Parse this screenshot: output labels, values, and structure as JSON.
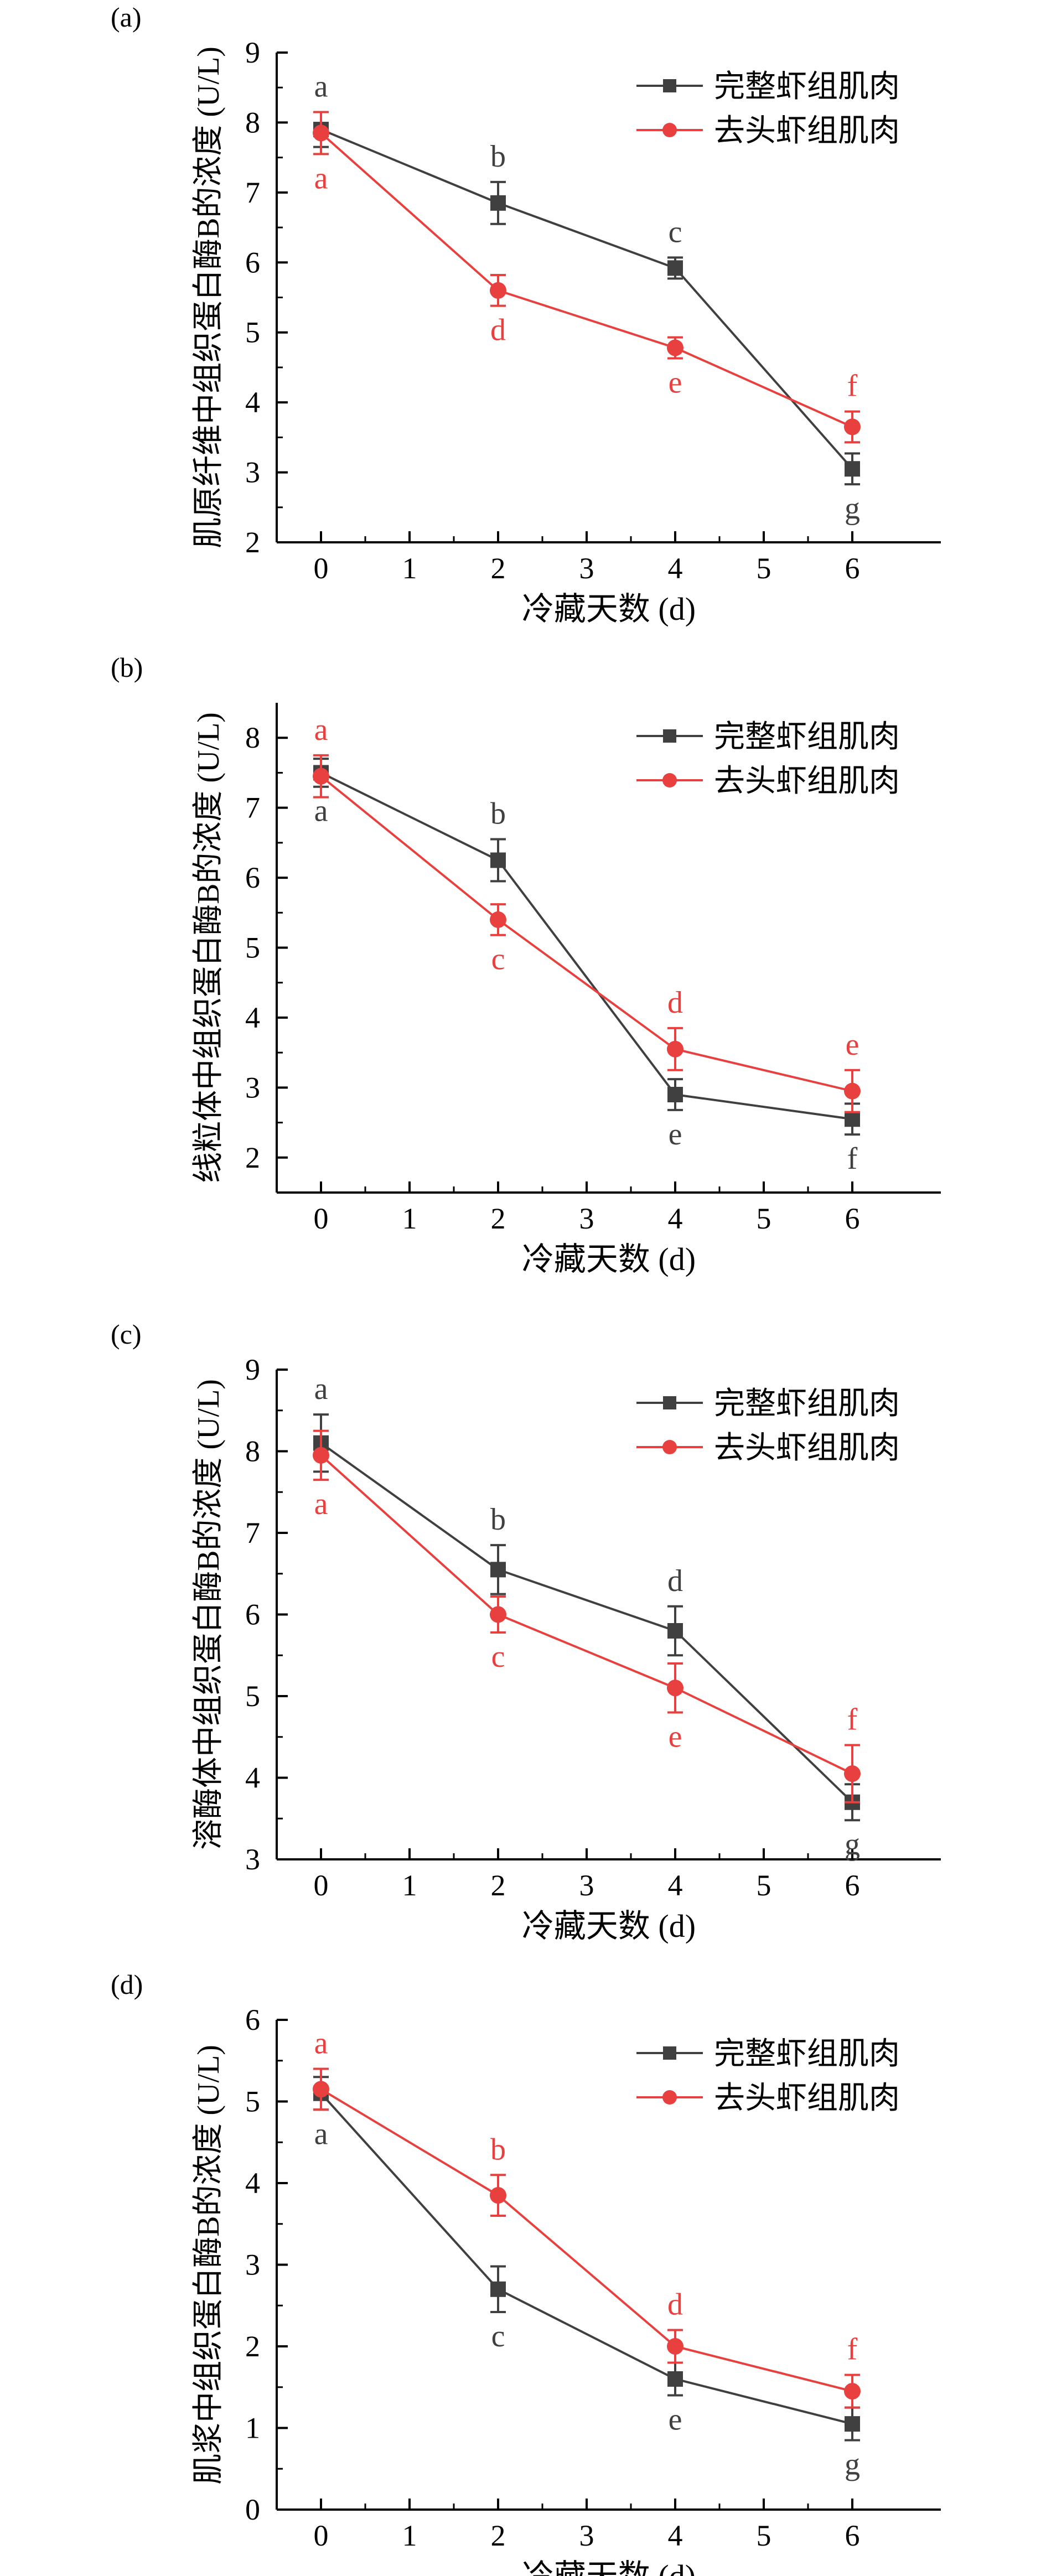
{
  "colors": {
    "whole": "#404040",
    "headless": "#e8403e",
    "axis": "#000000"
  },
  "legend": {
    "whole": "完整虾组肌肉",
    "headless": "去头虾组肌肉"
  },
  "xlabel": "冷藏天数 (d)",
  "chart_data": [
    {
      "type": "line",
      "panel": "(a)",
      "ylabel": "肌原纤维中组织蛋白酶B的浓度 (U/L)",
      "xlabel": "冷藏天数 (d)",
      "xlim": [
        -0.5,
        7
      ],
      "xticks": [
        0,
        1,
        2,
        3,
        4,
        5,
        6
      ],
      "ylim": [
        2,
        9
      ],
      "yticks": [
        2,
        3,
        4,
        5,
        6,
        7,
        8,
        9
      ],
      "x": [
        0,
        2,
        4,
        6
      ],
      "legend_position": "top-right",
      "series": [
        {
          "name": "完整虾组肌肉",
          "key": "whole",
          "marker": "square",
          "values": [
            7.9,
            6.85,
            5.92,
            3.05
          ],
          "errors": [
            0.25,
            0.3,
            0.15,
            0.22
          ],
          "letters": [
            "a",
            "b",
            "c",
            "g"
          ],
          "label_pos": [
            "above",
            "above",
            "above",
            "below"
          ]
        },
        {
          "name": "去头虾组肌肉",
          "key": "headless",
          "marker": "circle",
          "values": [
            7.85,
            5.6,
            4.78,
            3.65
          ],
          "errors": [
            0.3,
            0.22,
            0.15,
            0.22
          ],
          "letters": [
            "a",
            "d",
            "e",
            "f"
          ],
          "label_pos": [
            "below",
            "below",
            "below",
            "above"
          ]
        }
      ]
    },
    {
      "type": "line",
      "panel": "(b)",
      "ylabel": "线粒体中组织蛋白酶B的浓度 (U/L)",
      "xlabel": "冷藏天数 (d)",
      "xlim": [
        -0.5,
        7
      ],
      "xticks": [
        0,
        1,
        2,
        3,
        4,
        5,
        6
      ],
      "ylim": [
        1.5,
        8.5
      ],
      "yticks": [
        2,
        3,
        4,
        5,
        6,
        7,
        8
      ],
      "x": [
        0,
        2,
        4,
        6
      ],
      "legend_position": "top-right",
      "series": [
        {
          "name": "完整虾组肌肉",
          "key": "whole",
          "marker": "square",
          "values": [
            7.5,
            6.25,
            2.9,
            2.55
          ],
          "errors": [
            0.2,
            0.3,
            0.22,
            0.22
          ],
          "letters": [
            "a",
            "b",
            "e",
            "f"
          ],
          "label_pos": [
            "below",
            "above",
            "below",
            "below"
          ]
        },
        {
          "name": "去头虾组肌肉",
          "key": "headless",
          "marker": "circle",
          "values": [
            7.45,
            5.4,
            3.55,
            2.95
          ],
          "errors": [
            0.3,
            0.22,
            0.3,
            0.3
          ],
          "letters": [
            "a",
            "c",
            "d",
            "e"
          ],
          "label_pos": [
            "above",
            "below",
            "above",
            "above"
          ]
        }
      ]
    },
    {
      "type": "line",
      "panel": "(c)",
      "ylabel": "溶酶体中组织蛋白酶B的浓度 (U/L)",
      "xlabel": "冷藏天数 (d)",
      "xlim": [
        -0.5,
        7
      ],
      "xticks": [
        0,
        1,
        2,
        3,
        4,
        5,
        6
      ],
      "ylim": [
        3,
        9
      ],
      "yticks": [
        3,
        4,
        5,
        6,
        7,
        8,
        9
      ],
      "x": [
        0,
        2,
        4,
        6
      ],
      "legend_position": "top-right",
      "series": [
        {
          "name": "完整虾组肌肉",
          "key": "whole",
          "marker": "square",
          "values": [
            8.1,
            6.55,
            5.8,
            3.7
          ],
          "errors": [
            0.35,
            0.3,
            0.3,
            0.22
          ],
          "letters": [
            "a",
            "b",
            "d",
            "g"
          ],
          "label_pos": [
            "above",
            "above",
            "above",
            "below"
          ]
        },
        {
          "name": "去头虾组肌肉",
          "key": "headless",
          "marker": "circle",
          "values": [
            7.95,
            6.0,
            5.1,
            4.05
          ],
          "errors": [
            0.3,
            0.22,
            0.3,
            0.35
          ],
          "letters": [
            "a",
            "c",
            "e",
            "f"
          ],
          "label_pos": [
            "below",
            "below",
            "below",
            "above"
          ]
        }
      ]
    },
    {
      "type": "line",
      "panel": "(d)",
      "ylabel": "肌浆中组织蛋白酶B的浓度 (U/L)",
      "xlabel": "冷藏天数 (d)",
      "xlim": [
        -0.5,
        7
      ],
      "xticks": [
        0,
        1,
        2,
        3,
        4,
        5,
        6
      ],
      "ylim": [
        0,
        6
      ],
      "yticks": [
        0,
        1,
        2,
        3,
        4,
        5,
        6
      ],
      "x": [
        0,
        2,
        4,
        6
      ],
      "legend_position": "top-right",
      "series": [
        {
          "name": "完整虾组肌肉",
          "key": "whole",
          "marker": "square",
          "values": [
            5.1,
            2.7,
            1.6,
            1.05
          ],
          "errors": [
            0.2,
            0.28,
            0.2,
            0.2
          ],
          "letters": [
            "a",
            "c",
            "e",
            "g"
          ],
          "label_pos": [
            "below",
            "below",
            "below",
            "below"
          ]
        },
        {
          "name": "去头虾组肌肉",
          "key": "headless",
          "marker": "circle",
          "values": [
            5.15,
            3.85,
            2.0,
            1.45
          ],
          "errors": [
            0.25,
            0.25,
            0.2,
            0.2
          ],
          "letters": [
            "a",
            "b",
            "d",
            "f"
          ],
          "label_pos": [
            "above",
            "above",
            "above",
            "above"
          ]
        }
      ]
    }
  ]
}
